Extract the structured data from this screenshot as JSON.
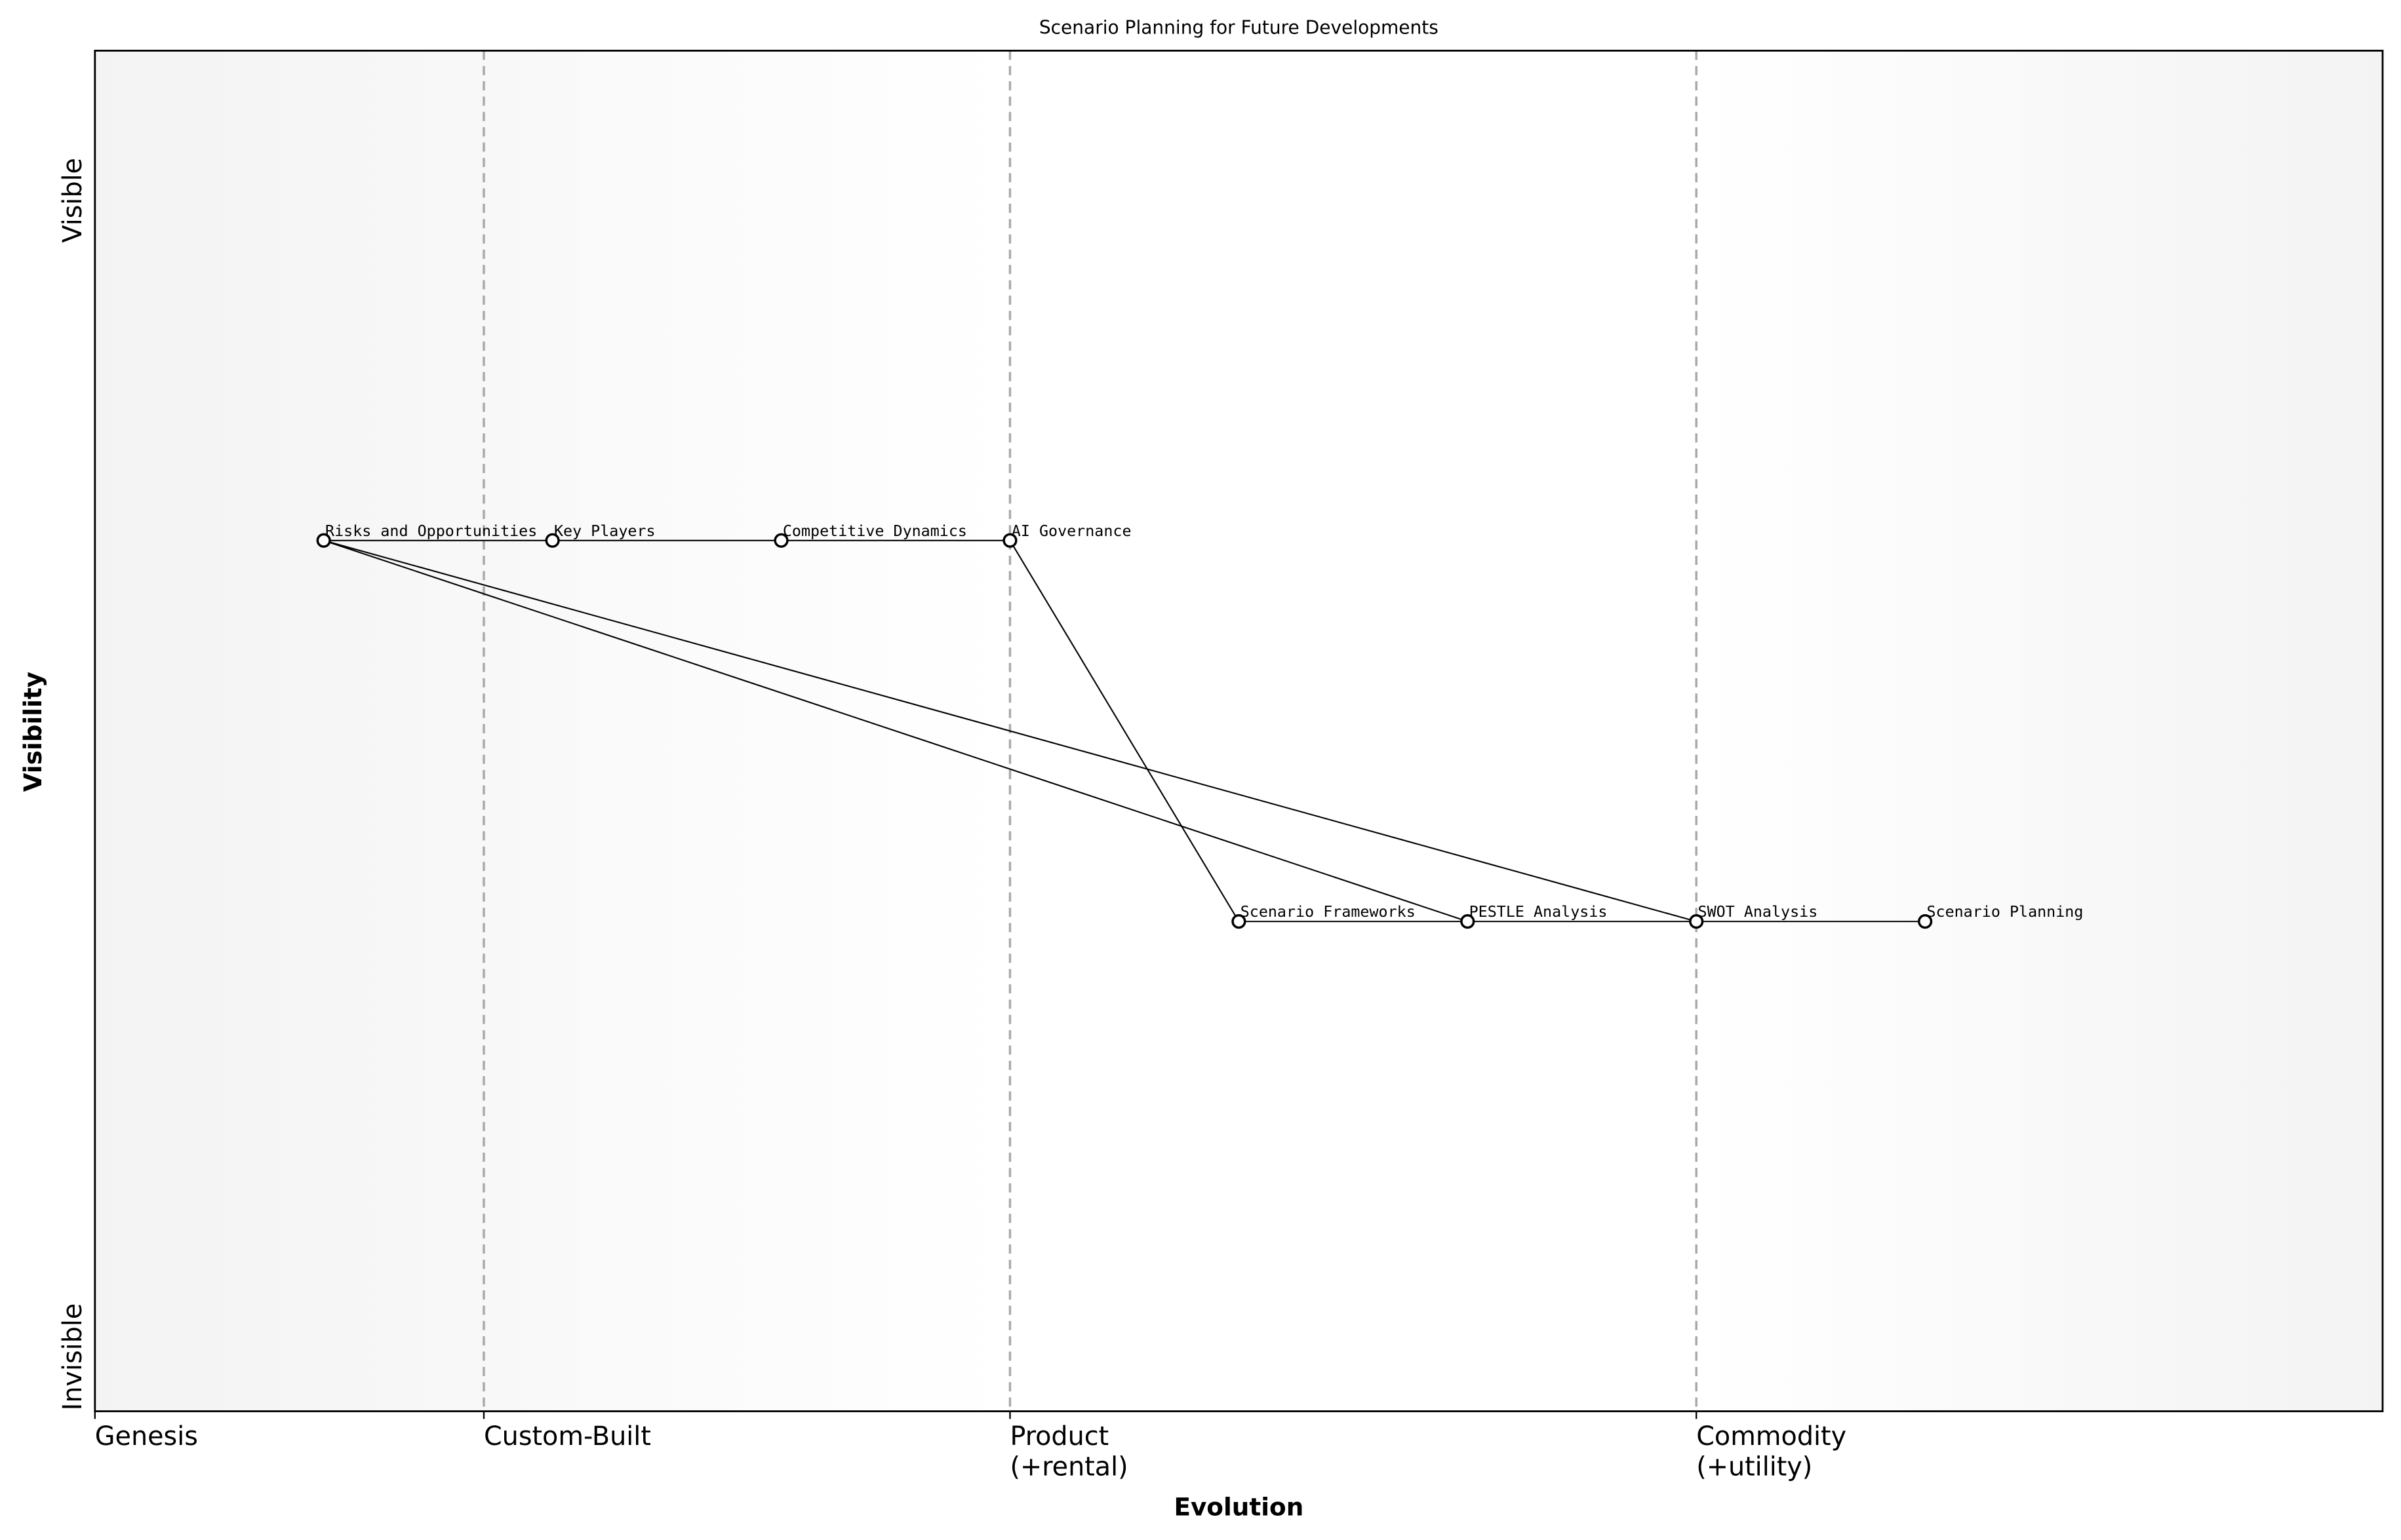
{
  "chart_data": {
    "type": "line",
    "title": "Scenario Planning for Future Developments",
    "xlabel": "Evolution",
    "ylabel": "Visibility",
    "xlim": [
      0,
      1
    ],
    "ylim": [
      0,
      1
    ],
    "grid": false,
    "x_ticks": [
      {
        "value": 0.0,
        "label": [
          "Genesis"
        ]
      },
      {
        "value": 0.17,
        "label": [
          "Custom-Built"
        ]
      },
      {
        "value": 0.4,
        "label": [
          "Product",
          "(+rental)"
        ]
      },
      {
        "value": 0.7,
        "label": [
          "Commodity",
          "(+utility)"
        ]
      }
    ],
    "stage_lines": [
      0.17,
      0.4,
      0.7
    ],
    "y_ticks": [
      {
        "value": 0.89,
        "label": "Visible"
      },
      {
        "value": 0.04,
        "label": "Invisible"
      }
    ],
    "nodes": [
      {
        "name": "Risks and Opportunities",
        "x": 0.1,
        "y": 0.64
      },
      {
        "name": "Key Players",
        "x": 0.2,
        "y": 0.64
      },
      {
        "name": "Competitive Dynamics",
        "x": 0.3,
        "y": 0.64
      },
      {
        "name": "AI Governance",
        "x": 0.4,
        "y": 0.64
      },
      {
        "name": "Scenario Frameworks",
        "x": 0.5,
        "y": 0.36
      },
      {
        "name": "PESTLE Analysis",
        "x": 0.6,
        "y": 0.36
      },
      {
        "name": "SWOT Analysis",
        "x": 0.7,
        "y": 0.36
      },
      {
        "name": "Scenario Planning",
        "x": 0.8,
        "y": 0.36
      }
    ],
    "edges": [
      [
        "Risks and Opportunities",
        "Key Players"
      ],
      [
        "Key Players",
        "Competitive Dynamics"
      ],
      [
        "Competitive Dynamics",
        "AI Governance"
      ],
      [
        "AI Governance",
        "Scenario Frameworks"
      ],
      [
        "Scenario Frameworks",
        "PESTLE Analysis"
      ],
      [
        "PESTLE Analysis",
        "SWOT Analysis"
      ],
      [
        "SWOT Analysis",
        "Scenario Planning"
      ],
      [
        "Risks and Opportunities",
        "PESTLE Analysis"
      ],
      [
        "Risks and Opportunities",
        "SWOT Analysis"
      ]
    ],
    "colors": {
      "stage_line": "#aaaaaa",
      "edge": "#000000",
      "node_fill": "#ffffff",
      "bg_edge": "#f3f3f3",
      "bg_center": "#ffffff"
    }
  }
}
